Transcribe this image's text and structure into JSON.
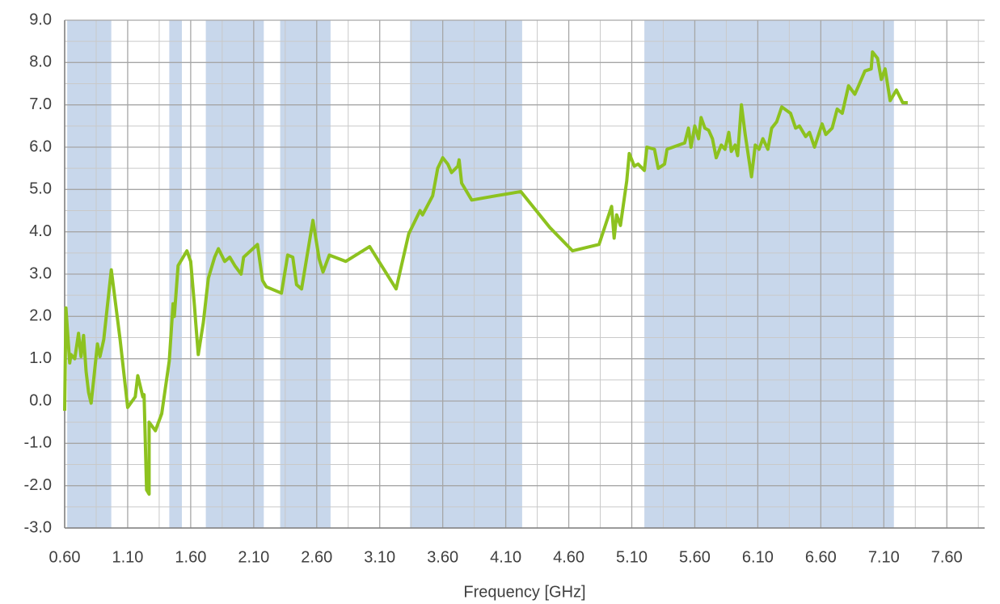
{
  "chart_data": {
    "type": "line",
    "x_label": "Frequency [GHz]",
    "xlim": [
      0.6,
      7.9
    ],
    "ylim": [
      -3,
      9
    ],
    "xticks": [
      {
        "value": 0.6,
        "label": "0.60"
      },
      {
        "value": 1.1,
        "label": "1.10"
      },
      {
        "value": 1.6,
        "label": "1.60"
      },
      {
        "value": 2.1,
        "label": "2.10"
      },
      {
        "value": 2.6,
        "label": "2.60"
      },
      {
        "value": 3.1,
        "label": "3.10"
      },
      {
        "value": 3.6,
        "label": "3.60"
      },
      {
        "value": 4.1,
        "label": "4.10"
      },
      {
        "value": 4.6,
        "label": "4.60"
      },
      {
        "value": 5.1,
        "label": "5.10"
      },
      {
        "value": 5.6,
        "label": "5.60"
      },
      {
        "value": 6.1,
        "label": "6.10"
      },
      {
        "value": 6.6,
        "label": "6.60"
      },
      {
        "value": 7.1,
        "label": "7.10"
      },
      {
        "value": 7.6,
        "label": "7.60"
      }
    ],
    "xminorticks": [
      0.85,
      1.35,
      1.85,
      2.35,
      2.85,
      3.35,
      3.85,
      4.35,
      4.85,
      5.35,
      5.85,
      6.35,
      6.85,
      7.35,
      7.85
    ],
    "yticks": [
      {
        "value": -3,
        "label": "-3.0"
      },
      {
        "value": -2,
        "label": "-2.0"
      },
      {
        "value": -1,
        "label": "-1.0"
      },
      {
        "value": 0,
        "label": "0.0"
      },
      {
        "value": 1,
        "label": "1.0"
      },
      {
        "value": 2,
        "label": "2.0"
      },
      {
        "value": 3,
        "label": "3.0"
      },
      {
        "value": 4,
        "label": "4.0"
      },
      {
        "value": 5,
        "label": "5.0"
      },
      {
        "value": 6,
        "label": "6.0"
      },
      {
        "value": 7,
        "label": "7.0"
      },
      {
        "value": 8,
        "label": "8.0"
      },
      {
        "value": 9,
        "label": "9.0"
      }
    ],
    "yminorticks": [
      -2.5,
      -1.5,
      -0.5,
      0.5,
      1.5,
      2.5,
      3.5,
      4.5,
      5.5,
      6.5,
      7.5,
      8.5
    ],
    "grid": true,
    "band_color": "#c8d7eb",
    "bands": [
      [
        0.62,
        0.97
      ],
      [
        1.43,
        1.53
      ],
      [
        1.72,
        2.18
      ],
      [
        2.31,
        2.71
      ],
      [
        3.34,
        4.23
      ],
      [
        5.2,
        7.18
      ]
    ],
    "x": [
      0.6,
      0.61,
      0.64,
      0.65,
      0.68,
      0.71,
      0.73,
      0.75,
      0.77,
      0.79,
      0.81,
      0.83,
      0.86,
      0.88,
      0.91,
      0.97,
      1.04,
      1.1,
      1.16,
      1.18,
      1.22,
      1.23,
      1.25,
      1.27,
      1.27,
      1.32,
      1.37,
      1.43,
      1.46,
      1.47,
      1.5,
      1.54,
      1.57,
      1.6,
      1.63,
      1.64,
      1.66,
      1.7,
      1.74,
      1.79,
      1.82,
      1.87,
      1.91,
      1.95,
      2.0,
      2.02,
      2.13,
      2.17,
      2.2,
      2.32,
      2.37,
      2.41,
      2.44,
      2.48,
      2.57,
      2.62,
      2.65,
      2.7,
      2.83,
      3.02,
      3.23,
      3.33,
      3.42,
      3.44,
      3.52,
      3.56,
      3.6,
      3.64,
      3.67,
      3.72,
      3.73,
      3.75,
      3.83,
      4.02,
      4.22,
      4.45,
      4.63,
      4.84,
      4.94,
      4.96,
      4.98,
      5.01,
      5.06,
      5.08,
      5.12,
      5.15,
      5.2,
      5.22,
      5.28,
      5.31,
      5.36,
      5.38,
      5.52,
      5.55,
      5.57,
      5.6,
      5.63,
      5.65,
      5.68,
      5.71,
      5.74,
      5.77,
      5.81,
      5.84,
      5.87,
      5.89,
      5.92,
      5.94,
      5.97,
      6.0,
      6.05,
      6.08,
      6.11,
      6.14,
      6.18,
      6.21,
      6.25,
      6.29,
      6.36,
      6.4,
      6.43,
      6.48,
      6.51,
      6.55,
      6.61,
      6.64,
      6.69,
      6.73,
      6.77,
      6.82,
      6.87,
      6.9,
      6.95,
      7.0,
      7.01,
      7.05,
      7.08,
      7.11,
      7.15,
      7.2,
      7.25,
      7.29
    ],
    "series": [
      {
        "color": "#8dc21f",
        "values": [
          -0.23,
          2.2,
          0.9,
          1.1,
          1.0,
          1.6,
          1.05,
          1.55,
          0.7,
          0.2,
          -0.05,
          0.5,
          1.35,
          1.05,
          1.45,
          3.1,
          1.45,
          -0.15,
          0.1,
          0.6,
          0.1,
          0.15,
          -2.1,
          -2.2,
          -0.5,
          -0.7,
          -0.3,
          0.95,
          2.3,
          2.0,
          3.2,
          3.4,
          3.55,
          3.3,
          2.25,
          1.85,
          1.1,
          1.85,
          2.9,
          3.4,
          3.6,
          3.3,
          3.4,
          3.2,
          3.0,
          3.4,
          3.7,
          2.85,
          2.7,
          2.55,
          3.45,
          3.4,
          2.75,
          2.65,
          4.27,
          3.35,
          3.05,
          3.45,
          3.3,
          3.65,
          2.65,
          3.95,
          4.5,
          4.4,
          4.85,
          5.5,
          5.75,
          5.6,
          5.4,
          5.55,
          5.7,
          5.15,
          4.75,
          4.85,
          4.95,
          4.1,
          3.55,
          3.7,
          4.6,
          3.85,
          4.4,
          4.15,
          5.2,
          5.85,
          5.55,
          5.6,
          5.45,
          6.0,
          5.95,
          5.5,
          5.6,
          5.95,
          6.1,
          6.45,
          6.0,
          6.5,
          6.2,
          6.7,
          6.45,
          6.4,
          6.2,
          5.75,
          6.05,
          5.95,
          6.35,
          5.9,
          6.05,
          5.8,
          7.0,
          6.3,
          5.3,
          6.05,
          5.95,
          6.2,
          5.95,
          6.45,
          6.6,
          6.95,
          6.8,
          6.45,
          6.5,
          6.25,
          6.35,
          6.0,
          6.55,
          6.3,
          6.45,
          6.9,
          6.8,
          7.45,
          7.25,
          7.45,
          7.8,
          7.85,
          8.25,
          8.1,
          7.6,
          7.85,
          7.1,
          7.35,
          7.05,
          7.05
        ]
      }
    ]
  }
}
